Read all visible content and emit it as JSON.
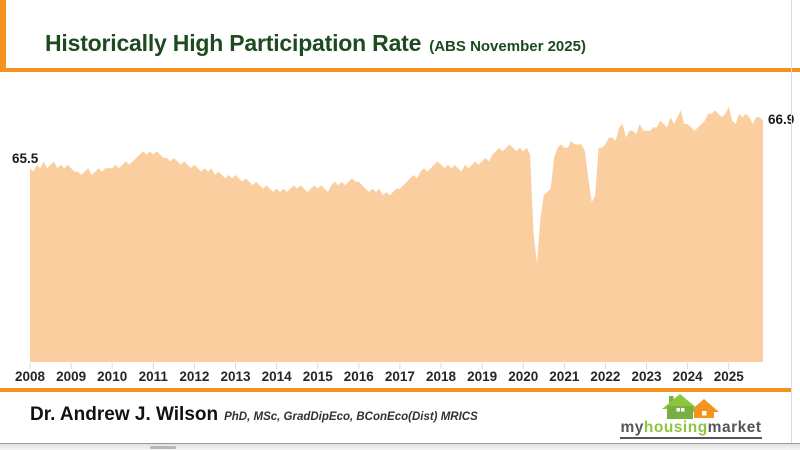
{
  "header": {
    "title": "Historically High Participation Rate",
    "subtitle": "(ABS November 2025)",
    "accent_color": "#F6921E",
    "title_color": "#1D4A1F"
  },
  "chart_data": {
    "type": "area",
    "title": "Historically High Participation Rate (ABS November 2025)",
    "series_name": "Participation Rate",
    "frequency": "monthly",
    "x_start": "2008-01",
    "x_end": "2025-11",
    "x_tick_labels": [
      "2008",
      "2009",
      "2010",
      "2011",
      "2012",
      "2013",
      "2014",
      "2015",
      "2016",
      "2017",
      "2018",
      "2019",
      "2020",
      "2021",
      "2022",
      "2023",
      "2024",
      "2025"
    ],
    "ylim_display": [
      59.8,
      68.5
    ],
    "grid": false,
    "legend": false,
    "fill_color": "#FBCEA0",
    "annotations": {
      "start_label": "65.5",
      "end_label": "66.9"
    },
    "values": [
      65.5,
      65.4,
      65.6,
      65.5,
      65.7,
      65.5,
      65.6,
      65.7,
      65.5,
      65.6,
      65.5,
      65.6,
      65.5,
      65.4,
      65.4,
      65.3,
      65.4,
      65.5,
      65.3,
      65.4,
      65.5,
      65.4,
      65.5,
      65.5,
      65.5,
      65.6,
      65.5,
      65.6,
      65.7,
      65.6,
      65.7,
      65.8,
      65.9,
      66.0,
      65.9,
      66.0,
      65.9,
      66.0,
      65.9,
      65.8,
      65.8,
      65.7,
      65.8,
      65.7,
      65.6,
      65.7,
      65.6,
      65.5,
      65.6,
      65.5,
      65.4,
      65.5,
      65.4,
      65.5,
      65.3,
      65.4,
      65.3,
      65.2,
      65.3,
      65.2,
      65.3,
      65.2,
      65.1,
      65.2,
      65.1,
      65.0,
      65.1,
      65.0,
      64.9,
      65.0,
      64.9,
      64.8,
      64.9,
      64.8,
      64.9,
      64.8,
      64.9,
      65.0,
      64.9,
      65.0,
      64.9,
      64.8,
      64.9,
      65.0,
      64.9,
      65.0,
      64.9,
      64.8,
      65.0,
      65.1,
      65.0,
      65.1,
      65.0,
      65.1,
      65.2,
      65.1,
      65.1,
      65.0,
      64.9,
      64.8,
      64.9,
      64.8,
      64.9,
      64.7,
      64.8,
      64.7,
      64.8,
      64.9,
      64.9,
      65.0,
      65.1,
      65.2,
      65.3,
      65.2,
      65.4,
      65.5,
      65.4,
      65.5,
      65.6,
      65.7,
      65.6,
      65.5,
      65.6,
      65.5,
      65.6,
      65.5,
      65.4,
      65.6,
      65.5,
      65.6,
      65.7,
      65.6,
      65.7,
      65.8,
      65.7,
      65.9,
      66.0,
      66.1,
      66.0,
      66.1,
      66.2,
      66.1,
      66.0,
      66.1,
      66.0,
      66.1,
      65.9,
      63.6,
      62.7,
      64.0,
      64.7,
      64.8,
      64.9,
      65.8,
      66.1,
      66.2,
      66.1,
      66.1,
      66.3,
      66.2,
      66.2,
      66.2,
      66.0,
      65.2,
      64.5,
      64.7,
      66.1,
      66.1,
      66.2,
      66.4,
      66.4,
      66.3,
      66.7,
      66.8,
      66.4,
      66.6,
      66.6,
      66.5,
      66.8,
      66.6,
      66.6,
      66.6,
      66.7,
      66.7,
      66.9,
      66.8,
      66.7,
      67.0,
      66.8,
      67.0,
      67.2,
      66.8,
      66.8,
      66.7,
      66.6,
      66.7,
      66.8,
      66.9,
      67.1,
      67.1,
      67.2,
      67.1,
      67.0,
      67.1,
      67.3,
      66.9,
      66.8,
      67.1,
      67.0,
      67.1,
      67.0,
      66.8,
      67.0,
      67.0,
      66.9
    ]
  },
  "footer": {
    "author": "Dr. Andrew J. Wilson",
    "credentials": "PhD, MSc, GradDipEco, BConEco(Dist) MRICS",
    "logo": {
      "word_my": "my",
      "word_housing": "housing",
      "word_market": "market",
      "green": "#8CC63E",
      "gray": "#55565A",
      "orange": "#F6921E"
    }
  }
}
